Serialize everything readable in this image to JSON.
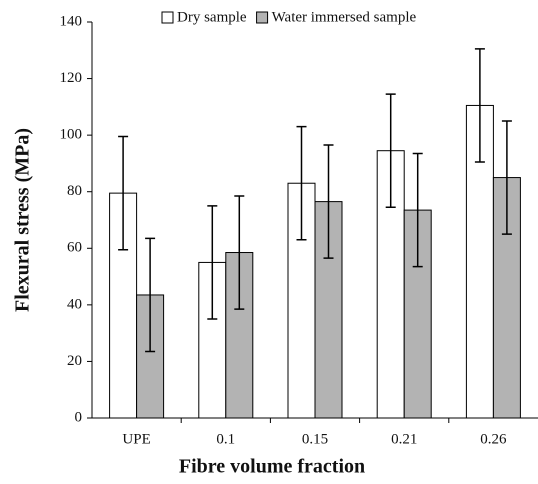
{
  "chart_data": {
    "type": "bar",
    "x_label": "Fibre volume fraction",
    "y_label": "Flexural stress (MPa)",
    "categories": [
      "UPE",
      "0.1",
      "0.15",
      "0.21",
      "0.26"
    ],
    "series": [
      {
        "name": "Dry sample",
        "color": "#ffffff",
        "values": [
          79.5,
          55,
          83,
          94.5,
          110.5
        ],
        "errors": [
          20,
          20,
          20,
          20,
          20
        ]
      },
      {
        "name": "Water immersed sample",
        "color": "#b3b3b3",
        "values": [
          43.5,
          58.5,
          76.5,
          73.5,
          85
        ],
        "errors": [
          20,
          20,
          20,
          20,
          20
        ]
      }
    ],
    "ylim": [
      0,
      140
    ],
    "yticks": [
      0,
      20,
      40,
      60,
      80,
      100,
      120,
      140
    ],
    "legend": "top"
  }
}
